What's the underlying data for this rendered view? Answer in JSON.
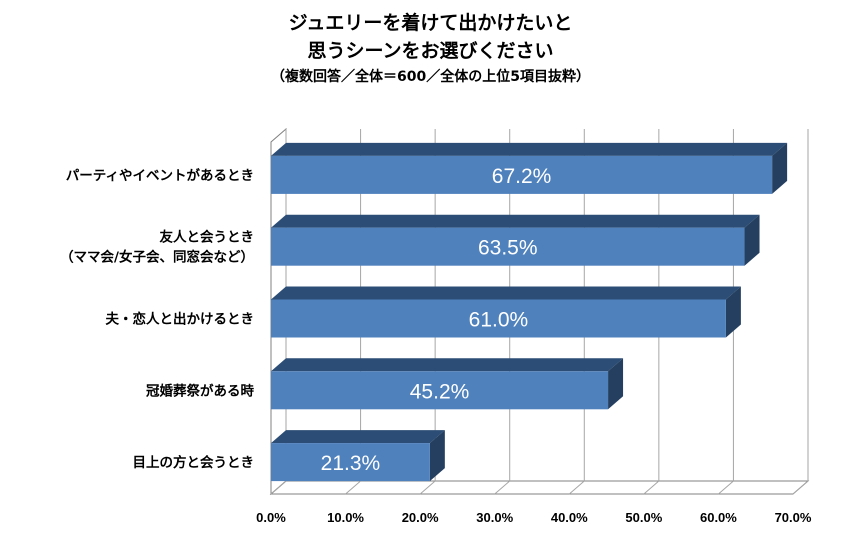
{
  "title": {
    "line1": "ジュエリーを着けて出かけたいと",
    "line2": "思うシーンをお選びください",
    "line3": "（複数回答／全体＝600／全体の上位5項目抜粋）"
  },
  "colors": {
    "bar_front": "#4F81BD",
    "bar_top": "#2C4D75",
    "bar_side": "#243F60",
    "grid": "#A6A6A6",
    "wall": "#808080",
    "label_text": "#FFFFFF"
  },
  "chart_data": {
    "type": "bar",
    "orientation": "horizontal",
    "style": "3d",
    "title": "ジュエリーを着けて出かけたいと思うシーンをお選びください（複数回答／全体＝600／全体の上位5項目抜粋）",
    "categories": [
      "パーティやイベントがあるとき",
      "友人と会うとき（ママ会/女子会、同窓会など）",
      "夫・恋人と出かけるとき",
      "冠婚葬祭がある時",
      "目上の方と会うとき"
    ],
    "category_lines": [
      [
        "パーティやイベントがあるとき"
      ],
      [
        "友人と会うとき",
        "（ママ会/女子会、同窓会など）"
      ],
      [
        "夫・恋人と出かけるとき"
      ],
      [
        "冠婚葬祭がある時"
      ],
      [
        "目上の方と会うとき"
      ]
    ],
    "values": [
      67.2,
      63.5,
      61.0,
      45.2,
      21.3
    ],
    "value_labels": [
      "67.2%",
      "63.5%",
      "61.0%",
      "45.2%",
      "21.3%"
    ],
    "xlim": [
      0,
      70
    ],
    "x_ticks": [
      0,
      10,
      20,
      30,
      40,
      50,
      60,
      70
    ],
    "x_tick_labels": [
      "0.0%",
      "10.0%",
      "20.0%",
      "30.0%",
      "40.0%",
      "50.0%",
      "60.0%",
      "70.0%"
    ],
    "xlabel": "",
    "ylabel": "",
    "grid": true,
    "legend": "none"
  }
}
